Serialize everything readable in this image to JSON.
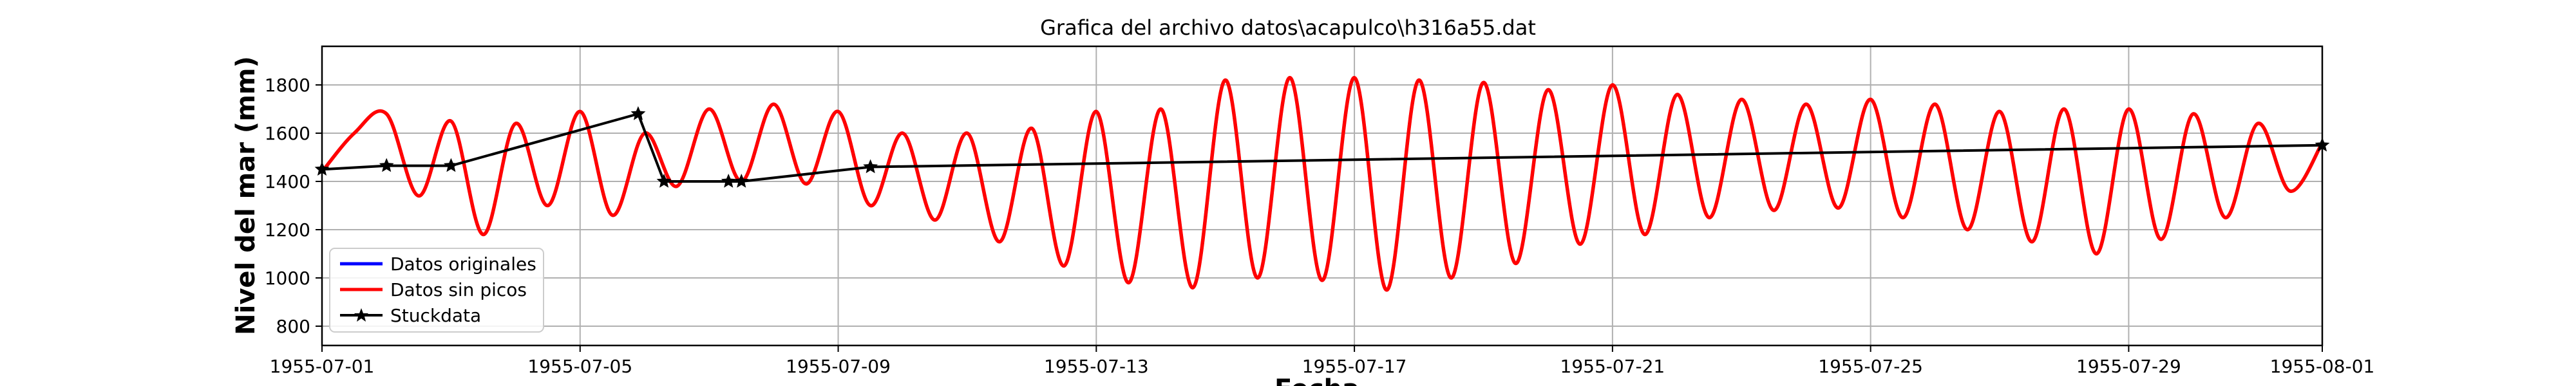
{
  "chart_data": {
    "type": "line",
    "title": "Grafica del archivo datos\\acapulco\\h316a55.dat",
    "xlabel": "Fecha",
    "ylabel": "Nivel del mar (mm)",
    "x_range_days": [
      0,
      31
    ],
    "ylim": [
      720,
      1960
    ],
    "grid": true,
    "x_ticks": [
      {
        "day": 0,
        "label": "1955-07-01"
      },
      {
        "day": 4,
        "label": "1955-07-05"
      },
      {
        "day": 8,
        "label": "1955-07-09"
      },
      {
        "day": 12,
        "label": "1955-07-13"
      },
      {
        "day": 16,
        "label": "1955-07-17"
      },
      {
        "day": 20,
        "label": "1955-07-21"
      },
      {
        "day": 24,
        "label": "1955-07-25"
      },
      {
        "day": 28,
        "label": "1955-07-29"
      },
      {
        "day": 31,
        "label": "1955-08-01"
      }
    ],
    "y_ticks": [
      {
        "value": 800,
        "label": "800"
      },
      {
        "value": 1000,
        "label": "1000"
      },
      {
        "value": 1200,
        "label": "1200"
      },
      {
        "value": 1400,
        "label": "1400"
      },
      {
        "value": 1600,
        "label": "1600"
      },
      {
        "value": 1800,
        "label": "1800"
      }
    ],
    "legend_position": "lower-left",
    "series": [
      {
        "name": "Datos originales",
        "color": "#0000ff",
        "marker": "none",
        "x_days": [
          0,
          0.5,
          1.0,
          1.5,
          2.0,
          2.5,
          3.0,
          3.5,
          4.0,
          4.5,
          5.0,
          5.5,
          6.0,
          6.5,
          7.0,
          7.5,
          8.0,
          8.5,
          9.0,
          9.5,
          10.0,
          10.5,
          11.0,
          11.5,
          12.0,
          12.5,
          13.0,
          13.5,
          14.0,
          14.5,
          15.0,
          15.5,
          16.0,
          16.5,
          17.0,
          17.5,
          18.0,
          18.5,
          19.0,
          19.5,
          20.0,
          20.5,
          21.0,
          21.5,
          22.0,
          22.5,
          23.0,
          23.5,
          24.0,
          24.5,
          25.0,
          25.5,
          26.0,
          26.5,
          27.0,
          27.5,
          28.0,
          28.5,
          29.0,
          29.5,
          30.0,
          30.5,
          31.0
        ],
        "values": [
          1440,
          1600,
          1680,
          1340,
          1650,
          1180,
          1640,
          1300,
          1690,
          1260,
          1600,
          1380,
          1700,
          1400,
          1720,
          1390,
          1690,
          1300,
          1600,
          1240,
          1600,
          1150,
          1620,
          1050,
          1690,
          980,
          1700,
          960,
          1820,
          1000,
          1830,
          990,
          1830,
          950,
          1820,
          1000,
          1810,
          1060,
          1780,
          1140,
          1800,
          1180,
          1760,
          1250,
          1740,
          1280,
          1720,
          1290,
          1740,
          1250,
          1720,
          1200,
          1690,
          1150,
          1700,
          1100,
          1700,
          1160,
          1680,
          1250,
          1640,
          1360,
          1560
        ]
      },
      {
        "name": "Datos sin picos",
        "color": "#ff0000",
        "marker": "none",
        "x_days": [
          0,
          0.5,
          1.0,
          1.5,
          2.0,
          2.5,
          3.0,
          3.5,
          4.0,
          4.5,
          5.0,
          5.5,
          6.0,
          6.5,
          7.0,
          7.5,
          8.0,
          8.5,
          9.0,
          9.5,
          10.0,
          10.5,
          11.0,
          11.5,
          12.0,
          12.5,
          13.0,
          13.5,
          14.0,
          14.5,
          15.0,
          15.5,
          16.0,
          16.5,
          17.0,
          17.5,
          18.0,
          18.5,
          19.0,
          19.5,
          20.0,
          20.5,
          21.0,
          21.5,
          22.0,
          22.5,
          23.0,
          23.5,
          24.0,
          24.5,
          25.0,
          25.5,
          26.0,
          26.5,
          27.0,
          27.5,
          28.0,
          28.5,
          29.0,
          29.5,
          30.0,
          30.5,
          31.0
        ],
        "values": [
          1440,
          1600,
          1680,
          1340,
          1650,
          1180,
          1640,
          1300,
          1690,
          1260,
          1600,
          1380,
          1700,
          1400,
          1720,
          1390,
          1690,
          1300,
          1600,
          1240,
          1600,
          1150,
          1620,
          1050,
          1690,
          980,
          1700,
          960,
          1820,
          1000,
          1830,
          990,
          1830,
          950,
          1820,
          1000,
          1810,
          1060,
          1780,
          1140,
          1800,
          1180,
          1760,
          1250,
          1740,
          1280,
          1720,
          1290,
          1740,
          1250,
          1720,
          1200,
          1690,
          1150,
          1700,
          1100,
          1700,
          1160,
          1680,
          1250,
          1640,
          1360,
          1560
        ]
      },
      {
        "name": "Stuckdata",
        "color": "#000000",
        "marker": "star",
        "x_days": [
          0,
          1.0,
          2.0,
          4.9,
          5.3,
          6.3,
          6.5,
          8.5,
          31.0
        ],
        "values": [
          1450,
          1465,
          1465,
          1680,
          1400,
          1400,
          1400,
          1460,
          1550
        ]
      }
    ]
  }
}
